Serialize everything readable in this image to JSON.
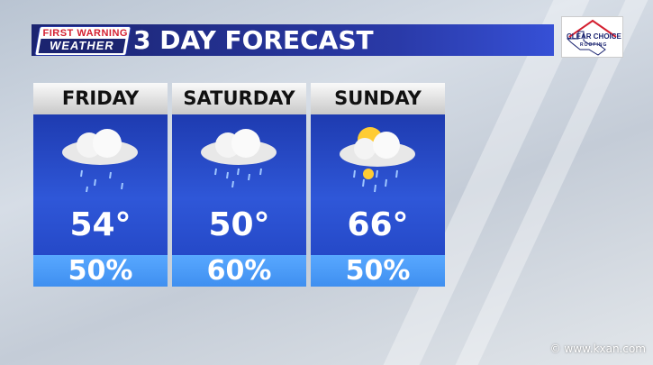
{
  "header": {
    "brand_line1": "FIRST WARNING",
    "brand_line2": "WEATHER",
    "title": "3 DAY FORECAST"
  },
  "sponsor": {
    "line1": "CLEAR CHOICE",
    "line2": "ROOFING"
  },
  "days": [
    {
      "name": "FRIDAY",
      "temp": "54°",
      "precip": "50%",
      "icon": "rain-cloud-icon"
    },
    {
      "name": "SATURDAY",
      "temp": "50°",
      "precip": "60%",
      "icon": "rain-cloud-icon"
    },
    {
      "name": "SUNDAY",
      "temp": "66°",
      "precip": "50%",
      "icon": "sun-cloud-rain-icon"
    }
  ],
  "footer": {
    "website": "© www.kxan.com"
  },
  "colors": {
    "title_bar": "#1b2470",
    "card_body": "#2549c8",
    "precip_bar": "#4a9bf8",
    "brand_red": "#d42030"
  }
}
